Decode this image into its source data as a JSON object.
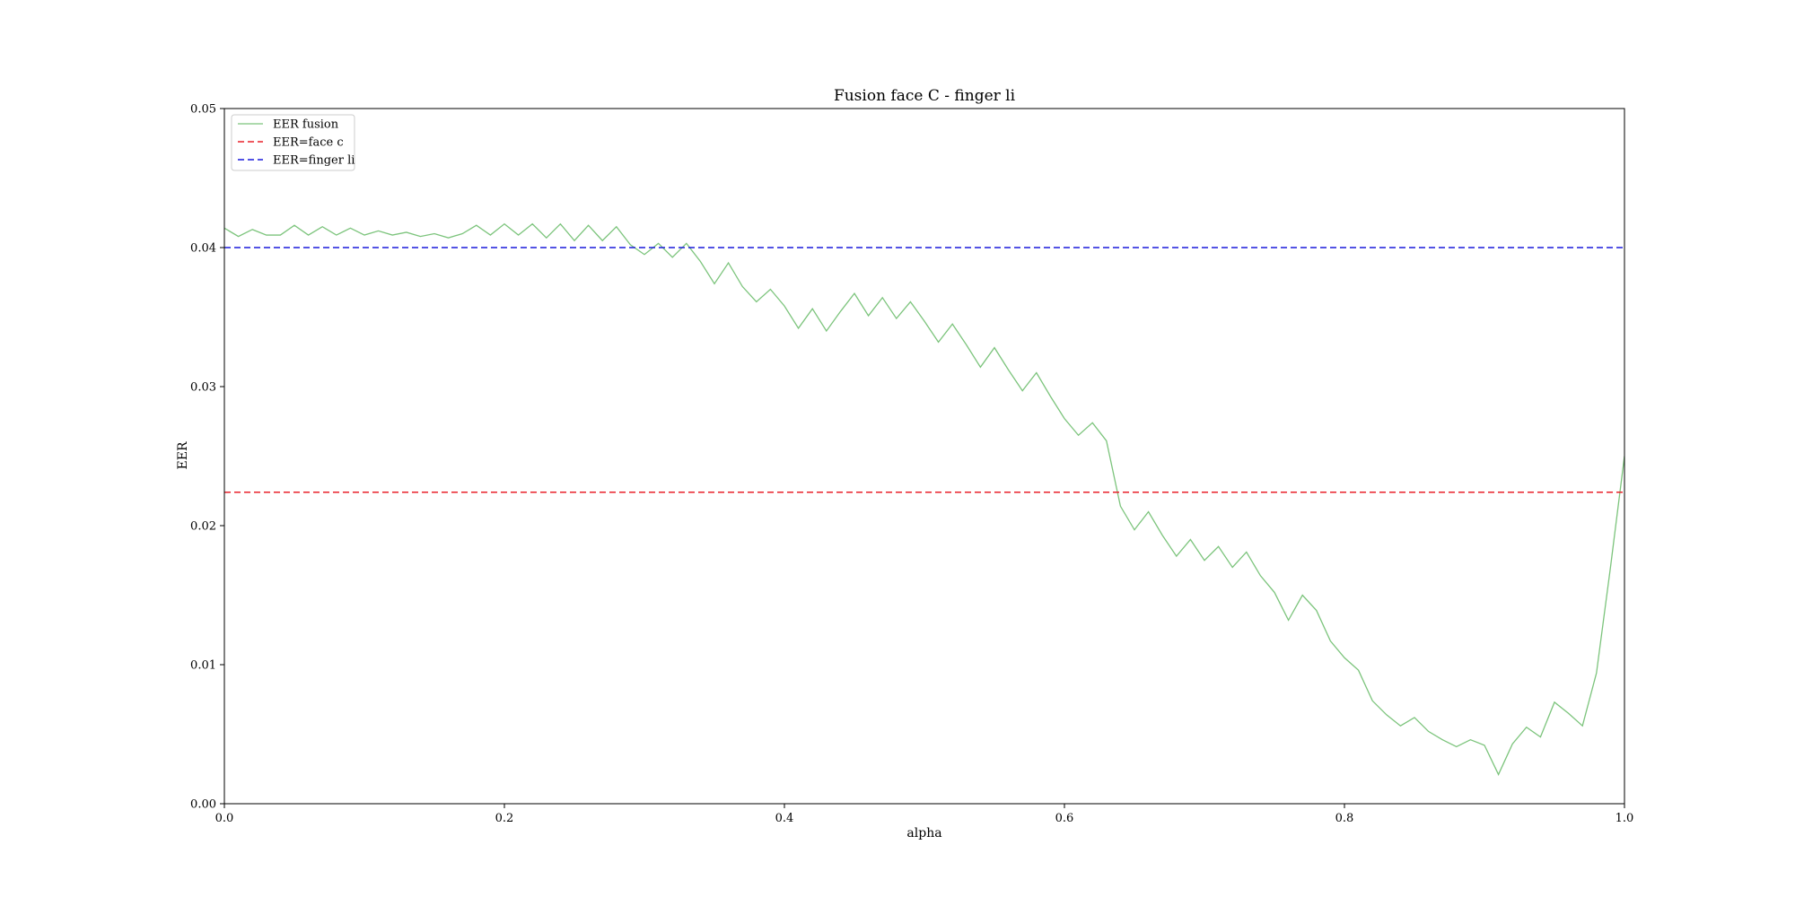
{
  "chart_data": {
    "type": "line",
    "title": "Fusion face C - finger li",
    "xlabel": "alpha",
    "ylabel": "EER",
    "xlim": [
      0.0,
      1.0
    ],
    "ylim": [
      0.0,
      0.05
    ],
    "xticks": [
      "0.0",
      "0.2",
      "0.4",
      "0.6",
      "0.8",
      "1.0"
    ],
    "yticks": [
      "0.00",
      "0.01",
      "0.02",
      "0.03",
      "0.04",
      "0.05"
    ],
    "grid": false,
    "legend_position": "top-left",
    "series": [
      {
        "name": "EER fusion",
        "style": "solid",
        "color": "#7cc47c",
        "x": [
          0.0,
          0.01,
          0.02,
          0.03,
          0.04,
          0.05,
          0.06,
          0.07,
          0.08,
          0.09,
          0.1,
          0.11,
          0.12,
          0.13,
          0.14,
          0.15,
          0.16,
          0.17,
          0.18,
          0.19,
          0.2,
          0.21,
          0.22,
          0.23,
          0.24,
          0.25,
          0.26,
          0.27,
          0.28,
          0.29,
          0.3,
          0.31,
          0.32,
          0.33,
          0.34,
          0.35,
          0.36,
          0.37,
          0.38,
          0.39,
          0.4,
          0.41,
          0.42,
          0.43,
          0.44,
          0.45,
          0.46,
          0.47,
          0.48,
          0.49,
          0.5,
          0.51,
          0.52,
          0.53,
          0.54,
          0.55,
          0.56,
          0.57,
          0.58,
          0.59,
          0.6,
          0.61,
          0.62,
          0.63,
          0.64,
          0.65,
          0.66,
          0.67,
          0.68,
          0.69,
          0.7,
          0.71,
          0.72,
          0.73,
          0.74,
          0.75,
          0.76,
          0.77,
          0.78,
          0.79,
          0.8,
          0.81,
          0.82,
          0.83,
          0.84,
          0.85,
          0.86,
          0.87,
          0.88,
          0.89,
          0.9,
          0.91,
          0.92,
          0.93,
          0.94,
          0.95,
          0.96,
          0.97,
          0.98,
          0.99,
          1.0
        ],
        "y": [
          0.0414,
          0.0408,
          0.0413,
          0.0409,
          0.0409,
          0.0416,
          0.0409,
          0.0415,
          0.0409,
          0.0414,
          0.0409,
          0.0412,
          0.0409,
          0.0411,
          0.0408,
          0.041,
          0.0407,
          0.041,
          0.0416,
          0.0409,
          0.0417,
          0.0409,
          0.0417,
          0.0407,
          0.0417,
          0.0405,
          0.0416,
          0.0405,
          0.0415,
          0.0402,
          0.0395,
          0.0403,
          0.0393,
          0.0403,
          0.039,
          0.0374,
          0.0389,
          0.0372,
          0.0361,
          0.037,
          0.0358,
          0.0342,
          0.0356,
          0.034,
          0.0354,
          0.0367,
          0.0351,
          0.0364,
          0.0349,
          0.0361,
          0.0347,
          0.0332,
          0.0345,
          0.033,
          0.0314,
          0.0328,
          0.0312,
          0.0297,
          0.031,
          0.0293,
          0.0277,
          0.0265,
          0.0274,
          0.0261,
          0.0214,
          0.0197,
          0.021,
          0.0193,
          0.0178,
          0.019,
          0.0175,
          0.0185,
          0.017,
          0.0181,
          0.0164,
          0.0152,
          0.0132,
          0.015,
          0.0139,
          0.0117,
          0.0105,
          0.0096,
          0.0074,
          0.0064,
          0.0056,
          0.0062,
          0.0052,
          0.0046,
          0.0041,
          0.0046,
          0.0042,
          0.0021,
          0.0043,
          0.0055,
          0.0048,
          0.0073,
          0.0065,
          0.0056,
          0.0094,
          0.017,
          0.025
        ]
      },
      {
        "name": "EER=face c",
        "style": "dashed",
        "color": "#e8202a",
        "x": [
          0.0,
          1.0
        ],
        "y": [
          0.0224,
          0.0224
        ]
      },
      {
        "name": "EER=finger li",
        "style": "dashed",
        "color": "#1a1adc",
        "x": [
          0.0,
          1.0
        ],
        "y": [
          0.04,
          0.04
        ]
      }
    ]
  }
}
